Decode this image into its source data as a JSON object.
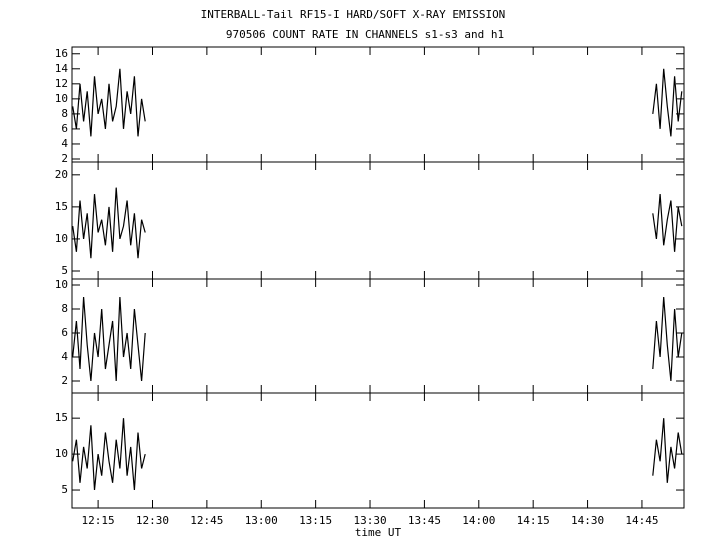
{
  "chart_data": [
    {
      "type": "line",
      "title": "INTERBALL-Tail RF15-I HARD/SOFT X-RAY EMISSION",
      "subtitle": "970506  COUNT RATE IN CHANNELS s1-s3 and h1",
      "x": [
        728,
        729,
        730,
        731,
        732,
        733,
        734,
        735,
        736,
        737,
        738,
        739,
        740,
        741,
        742,
        743,
        744,
        745,
        746,
        747,
        748,
        818,
        888,
        889,
        890,
        891,
        892,
        893,
        894,
        895,
        896
      ],
      "values": [
        9,
        6,
        12,
        7,
        11,
        5,
        13,
        8,
        10,
        6,
        12,
        7,
        9,
        14,
        6,
        11,
        8,
        13,
        5,
        10,
        7,
        null,
        8,
        12,
        6,
        14,
        9,
        5,
        13,
        7,
        11
      ],
      "color": "#000000",
      "xlim": [
        727.8,
        896.6
      ],
      "ylim": [
        1.6,
        16.9
      ],
      "yticks": [
        2,
        4,
        6,
        8,
        10,
        12,
        14,
        16
      ]
    },
    {
      "type": "line",
      "x": [
        728,
        729,
        730,
        731,
        732,
        733,
        734,
        735,
        736,
        737,
        738,
        739,
        740,
        741,
        742,
        743,
        744,
        745,
        746,
        747,
        748,
        818,
        888,
        889,
        890,
        891,
        892,
        893,
        894,
        895,
        896
      ],
      "values": [
        12,
        8,
        16,
        10,
        14,
        7,
        17,
        11,
        13,
        9,
        15,
        8,
        18,
        10,
        12,
        16,
        9,
        14,
        7,
        13,
        11,
        null,
        14,
        10,
        17,
        9,
        13,
        16,
        8,
        15,
        12
      ],
      "color": "#000000",
      "xlim": [
        727.8,
        896.6
      ],
      "ylim": [
        3.75,
        22
      ],
      "yticks": [
        5,
        10,
        15,
        20
      ]
    },
    {
      "type": "line",
      "x": [
        728,
        729,
        730,
        731,
        732,
        733,
        734,
        735,
        736,
        737,
        738,
        739,
        740,
        741,
        742,
        743,
        744,
        745,
        746,
        747,
        748,
        818,
        888,
        889,
        890,
        891,
        892,
        893,
        894,
        895,
        896
      ],
      "values": [
        4,
        7,
        3,
        9,
        5,
        2,
        6,
        4,
        8,
        3,
        5,
        7,
        2,
        9,
        4,
        6,
        3,
        8,
        5,
        2,
        6,
        null,
        3,
        7,
        4,
        9,
        5,
        2,
        8,
        4,
        6
      ],
      "color": "#000000",
      "xlim": [
        727.8,
        896.6
      ],
      "ylim": [
        1,
        10.5
      ],
      "yticks": [
        2,
        4,
        6,
        8,
        10
      ]
    },
    {
      "type": "line",
      "xlabel": "time UT",
      "x": [
        728,
        729,
        730,
        731,
        732,
        733,
        734,
        735,
        736,
        737,
        738,
        739,
        740,
        741,
        742,
        743,
        744,
        745,
        746,
        747,
        748,
        818,
        888,
        889,
        890,
        891,
        892,
        893,
        894,
        895,
        896
      ],
      "values": [
        9,
        12,
        6,
        11,
        8,
        14,
        5,
        10,
        7,
        13,
        9,
        6,
        12,
        8,
        15,
        7,
        11,
        5,
        13,
        8,
        10,
        null,
        7,
        12,
        9,
        15,
        6,
        11,
        8,
        13,
        10
      ],
      "color": "#000000",
      "xlim": [
        727.8,
        896.6
      ],
      "ylim": [
        2.5,
        18.5
      ],
      "yticks": [
        5,
        10,
        15
      ],
      "xticks": [
        {
          "value": 735,
          "label": "12:15"
        },
        {
          "value": 750,
          "label": "12:30"
        },
        {
          "value": 765,
          "label": "12:45"
        },
        {
          "value": 780,
          "label": "13:00"
        },
        {
          "value": 795,
          "label": "13:15"
        },
        {
          "value": 810,
          "label": "13:30"
        },
        {
          "value": 825,
          "label": "13:45"
        },
        {
          "value": 840,
          "label": "14:00"
        },
        {
          "value": 855,
          "label": "14:15"
        },
        {
          "value": 870,
          "label": "14:30"
        },
        {
          "value": 885,
          "label": "14:45"
        }
      ]
    }
  ]
}
